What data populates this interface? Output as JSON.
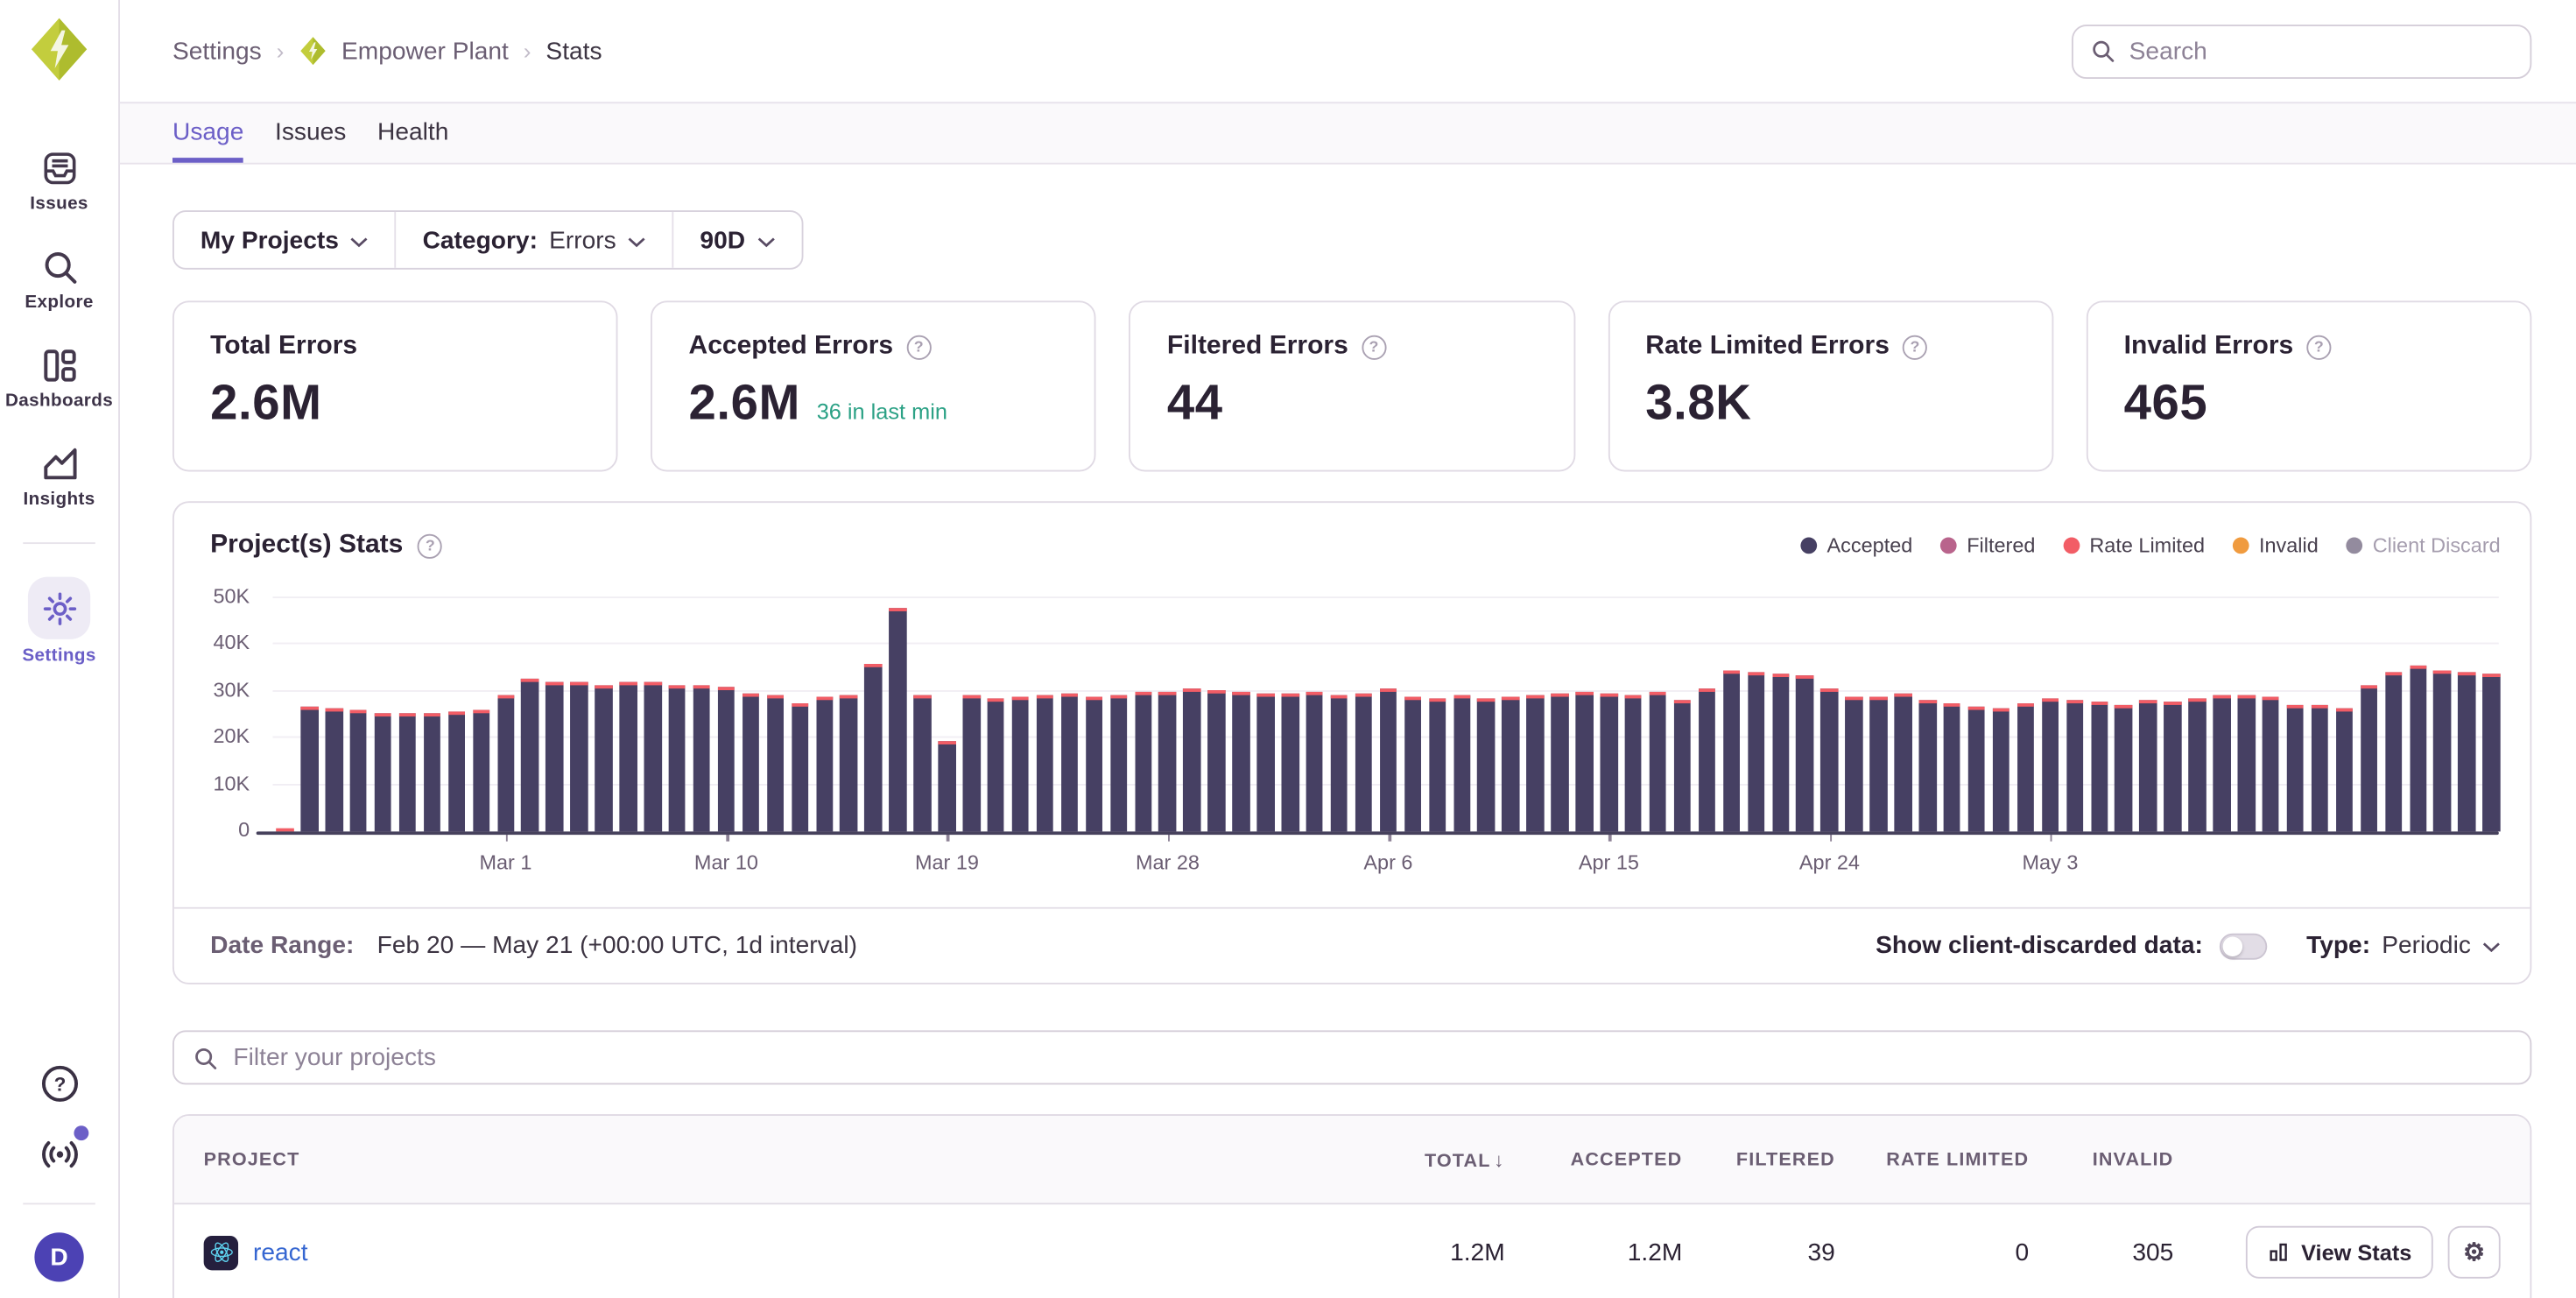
{
  "sidebar": {
    "items": [
      {
        "id": "issues",
        "label": "Issues",
        "icon": "issues",
        "active": false,
        "divider_before": false
      },
      {
        "id": "explore",
        "label": "Explore",
        "icon": "explore",
        "active": false,
        "divider_before": false
      },
      {
        "id": "dashboards",
        "label": "Dashboards",
        "icon": "dashboards",
        "active": false,
        "divider_before": false
      },
      {
        "id": "insights",
        "label": "Insights",
        "icon": "insights",
        "active": false,
        "divider_before": false
      },
      {
        "id": "settings",
        "label": "Settings",
        "icon": "settings",
        "active": true,
        "divider_before": true
      }
    ],
    "avatar_initial": "D"
  },
  "header": {
    "breadcrumb": [
      "Settings",
      "Empower Plant",
      "Stats"
    ],
    "search_placeholder": "Search"
  },
  "tabs": [
    {
      "label": "Usage",
      "active": true
    },
    {
      "label": "Issues",
      "active": false
    },
    {
      "label": "Health",
      "active": false
    }
  ],
  "filters": {
    "projects_label": "My Projects",
    "category_label": "Category:",
    "category_value": "Errors",
    "period_label": "90D"
  },
  "cards": [
    {
      "title": "Total Errors",
      "value": "2.6M",
      "suffix": "",
      "help": false
    },
    {
      "title": "Accepted Errors",
      "value": "2.6M",
      "suffix": "36 in last min",
      "help": true
    },
    {
      "title": "Filtered Errors",
      "value": "44",
      "suffix": "",
      "help": true
    },
    {
      "title": "Rate Limited Errors",
      "value": "3.8K",
      "suffix": "",
      "help": true
    },
    {
      "title": "Invalid Errors",
      "value": "465",
      "suffix": "",
      "help": true
    }
  ],
  "chart_data": {
    "type": "bar",
    "title": "Project(s) Stats",
    "start_date": "Feb 20",
    "end_date": "May 21",
    "interval": "1d",
    "ylim": [
      0,
      50000
    ],
    "yticks": [
      "0",
      "10K",
      "20K",
      "30K",
      "40K",
      "50K"
    ],
    "grid": true,
    "legend_position": "top-right",
    "legend": [
      {
        "label": "Accepted",
        "color": "#464063",
        "muted": false
      },
      {
        "label": "Filtered",
        "color": "#b9648c",
        "muted": false
      },
      {
        "label": "Rate Limited",
        "color": "#f25d66",
        "muted": false
      },
      {
        "label": "Invalid",
        "color": "#f09b3f",
        "muted": false
      },
      {
        "label": "Client Discard",
        "color": "#938b9e",
        "muted": true
      }
    ],
    "bar_color": "#464063",
    "cap_color": "#f25d66",
    "rate_limited_cap_k": 0.6,
    "values_k": [
      0.7,
      26.9,
      26.4,
      26.1,
      25.5,
      25.4,
      25.2,
      25.6,
      26.0,
      29.4,
      32.6,
      32.0,
      32.2,
      31.5,
      32.0,
      32.0,
      31.3,
      31.5,
      30.9,
      29.5,
      29.4,
      27.5,
      29.0,
      29.3,
      36.0,
      48.0,
      29.2,
      19.5,
      29.3,
      28.7,
      29.0,
      29.4,
      29.5,
      28.9,
      29.2,
      30.0,
      30.0,
      30.6,
      30.2,
      30.1,
      29.5,
      29.6,
      29.8,
      29.3,
      29.5,
      30.5,
      29.0,
      28.5,
      29.2,
      28.7,
      29.0,
      29.3,
      29.7,
      29.8,
      29.5,
      29.4,
      29.9,
      28.2,
      30.8,
      34.5,
      34.2,
      33.8,
      33.5,
      30.5,
      28.8,
      29.0,
      29.5,
      28.0,
      27.5,
      26.8,
      26.5,
      27.3,
      28.6,
      28.2,
      27.8,
      27.0,
      28.0,
      27.9,
      28.4,
      29.3,
      29.4,
      28.9,
      27.2,
      27.0,
      26.5,
      31.2,
      34.0,
      35.5,
      34.5,
      34.0,
      33.8
    ],
    "tick_labels": {
      "9": "Mar 1",
      "18": "Mar 10",
      "27": "Mar 19",
      "36": "Mar 28",
      "45": "Apr 6",
      "54": "Apr 15",
      "63": "Apr 24",
      "72": "May 3"
    }
  },
  "range_bar": {
    "label": "Date Range:",
    "value": "Feb 20 — May 21 (+00:00 UTC, 1d interval)",
    "toggle_label": "Show client-discarded data:",
    "toggle_on": false,
    "type_label": "Type:",
    "type_value": "Periodic"
  },
  "project_filter": {
    "placeholder": "Filter your projects"
  },
  "table": {
    "columns": [
      "PROJECT",
      "TOTAL",
      "ACCEPTED",
      "FILTERED",
      "RATE LIMITED",
      "INVALID"
    ],
    "sorted_column": "TOTAL",
    "sort_arrow": "↓",
    "rows": [
      {
        "project": "react",
        "total": "1.2M",
        "accepted": "1.2M",
        "filtered": "39",
        "rate_limited": "0",
        "invalid": "305",
        "view_stats_label": "View Stats"
      }
    ]
  }
}
